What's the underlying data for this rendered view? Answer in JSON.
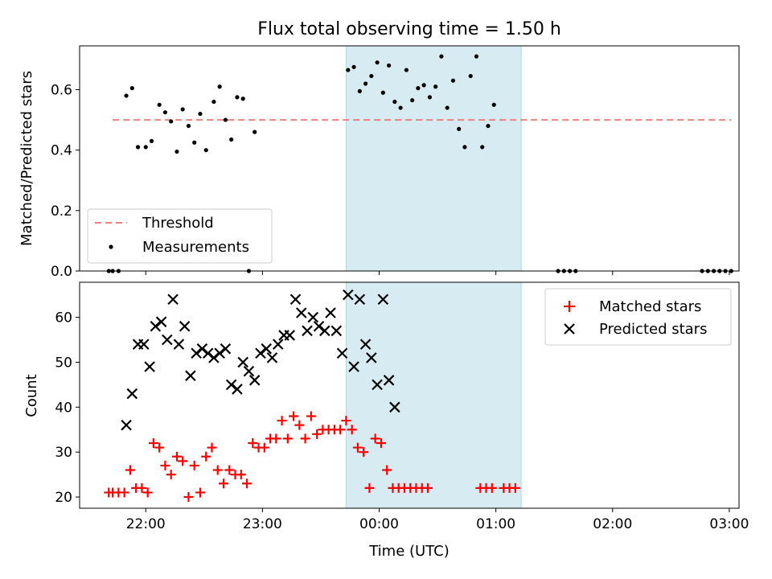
{
  "chart_data": {
    "title": "Flux total observing time = 1.50 h",
    "xlabel": "Time (UTC)",
    "x_tick_labels": [
      "22:00",
      "23:00",
      "00:00",
      "01:00",
      "02:00",
      "03:00"
    ],
    "x_ticks": [
      "22:00",
      "23:00",
      "00:00",
      "01:00",
      "02:00",
      "03:00"
    ],
    "xlim": [
      "21:26",
      "03:05"
    ],
    "highlight_interval": [
      "23:43",
      "01:13"
    ],
    "highlight_color": "#add8e6",
    "colors": {
      "threshold": "#f08080",
      "measurements": "#000000",
      "matched": "#ff0000",
      "predicted": "#000000"
    },
    "panels": [
      {
        "type": "scatter",
        "ylabel": "Matched/Predicted stars",
        "ylim": [
          0,
          0.745
        ],
        "y_ticks": [
          0.0,
          0.2,
          0.4,
          0.6
        ],
        "y_tick_labels": [
          "0.0",
          "0.2",
          "0.4",
          "0.6"
        ],
        "legend_position": "lower-left",
        "threshold": {
          "name": "Threshold",
          "value": 0.5,
          "x_range": [
            "21:43",
            "03:01"
          ]
        },
        "series": [
          {
            "name": "Measurements",
            "points": [
              [
                "21:41",
                0.0
              ],
              [
                "21:43",
                0.0
              ],
              [
                "21:46",
                0.0
              ],
              [
                "21:50",
                0.58
              ],
              [
                "21:53",
                0.605
              ],
              [
                "21:56",
                0.41
              ],
              [
                "22:00",
                0.41
              ],
              [
                "22:03",
                0.43
              ],
              [
                "22:07",
                0.55
              ],
              [
                "22:10",
                0.525
              ],
              [
                "22:13",
                0.495
              ],
              [
                "22:16",
                0.395
              ],
              [
                "22:19",
                0.535
              ],
              [
                "22:22",
                0.48
              ],
              [
                "22:25",
                0.425
              ],
              [
                "22:28",
                0.52
              ],
              [
                "22:31",
                0.4
              ],
              [
                "22:35",
                0.56
              ],
              [
                "22:38",
                0.61
              ],
              [
                "22:41",
                0.5
              ],
              [
                "22:44",
                0.435
              ],
              [
                "22:47",
                0.575
              ],
              [
                "22:50",
                0.57
              ],
              [
                "22:53",
                0.0
              ],
              [
                "22:56",
                0.46
              ],
              [
                "23:44",
                0.665
              ],
              [
                "23:47",
                0.675
              ],
              [
                "23:50",
                0.595
              ],
              [
                "23:53",
                0.62
              ],
              [
                "23:56",
                0.645
              ],
              [
                "23:59",
                0.69
              ],
              [
                "00:02",
                0.59
              ],
              [
                "00:05",
                0.68
              ],
              [
                "00:08",
                0.56
              ],
              [
                "00:11",
                0.54
              ],
              [
                "00:14",
                0.665
              ],
              [
                "00:17",
                0.565
              ],
              [
                "00:20",
                0.605
              ],
              [
                "00:23",
                0.615
              ],
              [
                "00:26",
                0.575
              ],
              [
                "00:29",
                0.61
              ],
              [
                "00:32",
                0.71
              ],
              [
                "00:35",
                0.54
              ],
              [
                "00:38",
                0.63
              ],
              [
                "00:41",
                0.47
              ],
              [
                "00:44",
                0.41
              ],
              [
                "00:47",
                0.645
              ],
              [
                "00:50",
                0.71
              ],
              [
                "00:53",
                0.41
              ],
              [
                "00:56",
                0.48
              ],
              [
                "00:59",
                0.55
              ],
              [
                "01:32",
                0.0
              ],
              [
                "01:35",
                0.0
              ],
              [
                "01:38",
                0.0
              ],
              [
                "01:41",
                0.0
              ],
              [
                "02:46",
                0.0
              ],
              [
                "02:49",
                0.0
              ],
              [
                "02:52",
                0.0
              ],
              [
                "02:55",
                0.0
              ],
              [
                "02:58",
                0.0
              ],
              [
                "03:01",
                0.0
              ]
            ]
          }
        ]
      },
      {
        "type": "scatter",
        "ylabel": "Count",
        "ylim": [
          17.5,
          67.8
        ],
        "y_ticks": [
          20,
          30,
          40,
          50,
          60
        ],
        "y_tick_labels": [
          "20",
          "30",
          "40",
          "50",
          "60"
        ],
        "legend_position": "upper-right",
        "series": [
          {
            "name": "Matched stars",
            "marker": "plus",
            "points": [
              [
                "21:41",
                21
              ],
              [
                "21:43",
                21
              ],
              [
                "21:46",
                21
              ],
              [
                "21:49",
                21
              ],
              [
                "21:52",
                26
              ],
              [
                "21:55",
                22
              ],
              [
                "21:58",
                22
              ],
              [
                "22:01",
                21
              ],
              [
                "22:04",
                32
              ],
              [
                "22:07",
                31
              ],
              [
                "22:10",
                27
              ],
              [
                "22:13",
                25
              ],
              [
                "22:16",
                29
              ],
              [
                "22:19",
                28
              ],
              [
                "22:22",
                20
              ],
              [
                "22:25",
                27
              ],
              [
                "22:28",
                21
              ],
              [
                "22:31",
                29
              ],
              [
                "22:34",
                31
              ],
              [
                "22:37",
                26
              ],
              [
                "22:40",
                23
              ],
              [
                "22:43",
                26
              ],
              [
                "22:46",
                25
              ],
              [
                "22:49",
                25
              ],
              [
                "22:52",
                23
              ],
              [
                "22:55",
                32
              ],
              [
                "22:58",
                31
              ],
              [
                "23:01",
                31
              ],
              [
                "23:04",
                33
              ],
              [
                "23:07",
                33
              ],
              [
                "23:10",
                37
              ],
              [
                "23:13",
                33
              ],
              [
                "23:16",
                38
              ],
              [
                "23:19",
                36
              ],
              [
                "23:22",
                33
              ],
              [
                "23:25",
                38
              ],
              [
                "23:28",
                34
              ],
              [
                "23:31",
                35
              ],
              [
                "23:34",
                35
              ],
              [
                "23:37",
                35
              ],
              [
                "23:40",
                35
              ],
              [
                "23:43",
                37
              ],
              [
                "23:46",
                35
              ],
              [
                "23:49",
                31
              ],
              [
                "23:52",
                30
              ],
              [
                "23:55",
                22
              ],
              [
                "23:58",
                33
              ],
              [
                "00:01",
                32
              ],
              [
                "00:04",
                26
              ],
              [
                "00:07",
                22
              ],
              [
                "00:10",
                22
              ],
              [
                "00:13",
                22
              ],
              [
                "00:16",
                22
              ],
              [
                "00:19",
                22
              ],
              [
                "00:22",
                22
              ],
              [
                "00:25",
                22
              ],
              [
                "00:52",
                22
              ],
              [
                "00:55",
                22
              ],
              [
                "00:58",
                22
              ],
              [
                "01:04",
                22
              ],
              [
                "01:07",
                22
              ],
              [
                "01:10",
                22
              ]
            ]
          },
          {
            "name": "Predicted stars",
            "marker": "x",
            "points": [
              [
                "21:50",
                36
              ],
              [
                "21:53",
                43
              ],
              [
                "21:56",
                54
              ],
              [
                "21:59",
                54
              ],
              [
                "22:02",
                49
              ],
              [
                "22:05",
                58
              ],
              [
                "22:08",
                59
              ],
              [
                "22:11",
                55
              ],
              [
                "22:14",
                64
              ],
              [
                "22:17",
                54
              ],
              [
                "22:20",
                58
              ],
              [
                "22:23",
                47
              ],
              [
                "22:26",
                52
              ],
              [
                "22:29",
                53
              ],
              [
                "22:32",
                52
              ],
              [
                "22:35",
                51
              ],
              [
                "22:38",
                52
              ],
              [
                "22:41",
                53
              ],
              [
                "22:44",
                45
              ],
              [
                "22:47",
                44
              ],
              [
                "22:50",
                50
              ],
              [
                "22:53",
                48
              ],
              [
                "22:56",
                46
              ],
              [
                "22:59",
                52
              ],
              [
                "23:02",
                53
              ],
              [
                "23:05",
                51
              ],
              [
                "23:08",
                54
              ],
              [
                "23:11",
                56
              ],
              [
                "23:14",
                56
              ],
              [
                "23:17",
                64
              ],
              [
                "23:20",
                61
              ],
              [
                "23:23",
                57
              ],
              [
                "23:26",
                60
              ],
              [
                "23:29",
                58
              ],
              [
                "23:32",
                57
              ],
              [
                "23:35",
                61
              ],
              [
                "23:38",
                57
              ],
              [
                "23:41",
                52
              ],
              [
                "23:44",
                65
              ],
              [
                "23:47",
                49
              ],
              [
                "23:50",
                64
              ],
              [
                "23:53",
                54
              ],
              [
                "23:56",
                51
              ],
              [
                "23:59",
                45
              ],
              [
                "00:02",
                64
              ],
              [
                "00:05",
                46
              ],
              [
                "00:08",
                40
              ]
            ]
          }
        ]
      }
    ]
  }
}
